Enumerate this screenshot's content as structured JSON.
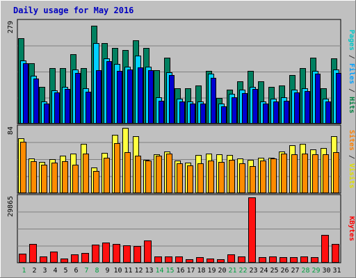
{
  "chart_data": {
    "type": "bar",
    "title": "Daily usage for May 2016",
    "x": [
      "1",
      "2",
      "3",
      "4",
      "5",
      "6",
      "7",
      "8",
      "9",
      "10",
      "11",
      "12",
      "13",
      "14",
      "15",
      "16",
      "17",
      "18",
      "19",
      "20",
      "21",
      "22",
      "23",
      "24",
      "25",
      "26",
      "27",
      "28",
      "29",
      "30",
      "31"
    ],
    "weekend_days": [
      "1",
      "7",
      "8",
      "14",
      "15",
      "21",
      "22",
      "28",
      "29"
    ],
    "panels": [
      {
        "id": "hits",
        "ymax_label": "279",
        "ymax": 279,
        "axis_labels": [
          {
            "text": "Pages",
            "color": "#00c8c8"
          },
          {
            "text": " / ",
            "color": "#333333"
          },
          {
            "text": "Files",
            "color": "#00a0ff"
          },
          {
            "text": " / ",
            "color": "#333333"
          },
          {
            "text": "Hits",
            "color": "#008040"
          }
        ],
        "series": [
          {
            "name": "Hits",
            "color": "#008060",
            "values": [
              235,
              166,
              101,
              152,
              152,
              192,
              152,
              269,
              222,
              208,
              203,
              230,
              208,
              148,
              181,
              98,
              98,
              106,
              145,
              70,
              93,
              117,
              145,
              117,
              101,
              106,
              133,
              152,
              182,
              98,
              180
            ]
          },
          {
            "name": "Files",
            "color": "#00d0ff",
            "values": [
              173,
              131,
              62,
              91,
              101,
              149,
              98,
              222,
              179,
              165,
              157,
              188,
              157,
              72,
              142,
              68,
              62,
              62,
              137,
              55,
              82,
              93,
              101,
              62,
              69,
              72,
              93,
              98,
              145,
              69,
              150
            ]
          },
          {
            "name": "Pages",
            "color": "#0000d0",
            "values": [
              166,
              125,
              55,
              86,
              96,
              140,
              88,
              148,
              172,
              145,
              150,
              155,
              148,
              64,
              134,
              62,
              55,
              55,
              126,
              48,
              72,
              84,
              96,
              55,
              62,
              64,
              86,
              90,
              138,
              62,
              140
            ]
          }
        ]
      },
      {
        "id": "visits",
        "ymax_label": "84",
        "ymax": 84,
        "axis_labels": [
          {
            "text": "Sites",
            "color": "#ff8000"
          },
          {
            "text": " / ",
            "color": "#333333"
          },
          {
            "text": "Visits",
            "color": "#e0e000"
          }
        ],
        "series": [
          {
            "name": "Visits",
            "color": "#ffff40",
            "values": [
              71,
              45,
              40,
              44,
              48,
              51,
              63,
              33,
              52,
              75,
              84,
              73,
              43,
              50,
              54,
              42,
              39,
              49,
              51,
              50,
              49,
              45,
              43,
              46,
              46,
              54,
              62,
              63,
              56,
              58,
              73
            ]
          },
          {
            "name": "Sites",
            "color": "#ff8c00",
            "values": [
              66,
              41,
              37,
              39,
              41,
              37,
              51,
              29,
              46,
              64,
              53,
              48,
              42,
              48,
              51,
              38,
              36,
              38,
              42,
              40,
              43,
              38,
              35,
              42,
              45,
              51,
              50,
              51,
              50,
              50,
              53
            ]
          }
        ]
      },
      {
        "id": "kbytes",
        "ymax_label": "29865",
        "ymax": 29865,
        "axis_labels": [
          {
            "text": "KBytes",
            "color": "#ff0000"
          }
        ],
        "series": [
          {
            "name": "KBytes",
            "color": "#ff1010",
            "values": [
              4200,
              8600,
              2900,
              5000,
              2000,
              3900,
              4500,
              8300,
              9100,
              8500,
              7900,
              7600,
              10300,
              2900,
              2900,
              2900,
              1600,
              2600,
              2000,
              1600,
              3700,
              2900,
              29865,
              2600,
              2900,
              2600,
              2600,
              2900,
              2600,
              12800,
              8600
            ]
          }
        ]
      }
    ]
  }
}
